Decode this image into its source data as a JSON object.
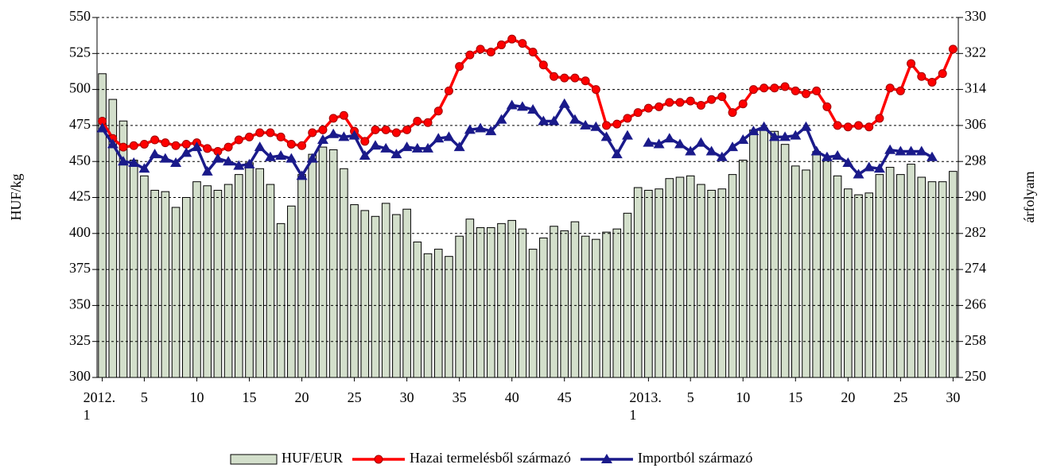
{
  "chart_data": {
    "type": "bar",
    "ylabel": "HUF/kg",
    "y2label": "árfolyam",
    "ylim": [
      300,
      550
    ],
    "yticks": [
      300,
      325,
      350,
      375,
      400,
      425,
      450,
      475,
      500,
      525,
      550
    ],
    "y2lim": [
      250,
      330
    ],
    "y2ticks": [
      250,
      258,
      266,
      274,
      282,
      290,
      298,
      306,
      314,
      322,
      330
    ],
    "grid": true,
    "legend": "bottom",
    "categories": [
      "2012. 1",
      null,
      null,
      null,
      "5",
      null,
      null,
      null,
      null,
      "10",
      null,
      null,
      null,
      null,
      "15",
      null,
      null,
      null,
      null,
      "20",
      null,
      null,
      null,
      null,
      "25",
      null,
      null,
      null,
      null,
      "30",
      null,
      null,
      null,
      null,
      "35",
      null,
      null,
      null,
      null,
      "40",
      null,
      null,
      null,
      null,
      "45",
      null,
      null,
      null,
      null,
      null,
      null,
      null,
      "2013. 1",
      null,
      null,
      null,
      "5",
      null,
      null,
      null,
      null,
      "10",
      null,
      null,
      null,
      null,
      "15",
      null,
      null,
      null,
      null,
      "20",
      null,
      null,
      null,
      null,
      "25",
      null,
      null,
      null,
      null,
      "30"
    ],
    "series": [
      {
        "name": "HUF/EUR",
        "type": "bar",
        "axis": "y2",
        "color": "#d3dfcb",
        "values": [
          317.5,
          311.8,
          307.0,
          298.3,
          294.8,
          291.6,
          291.3,
          287.8,
          290.0,
          293.5,
          292.6,
          291.6,
          292.9,
          295.1,
          297.7,
          296.4,
          292.9,
          284.2,
          288.1,
          295.1,
          299.6,
          301.2,
          300.6,
          296.4,
          288.4,
          287.1,
          285.8,
          288.7,
          286.2,
          287.4,
          280.1,
          277.5,
          278.5,
          276.9,
          281.4,
          285.2,
          283.3,
          283.3,
          284.2,
          284.9,
          283.0,
          278.5,
          281.0,
          283.6,
          282.6,
          284.6,
          281.4,
          280.7,
          282.3,
          283.0,
          286.5,
          292.2,
          291.6,
          291.9,
          294.2,
          294.5,
          294.8,
          292.9,
          291.6,
          291.9,
          295.1,
          298.3,
          305.0,
          305.4,
          304.7,
          301.8,
          297.0,
          296.1,
          300.2,
          298.6,
          294.8,
          291.9,
          290.6,
          291.0,
          295.1,
          296.7,
          295.1,
          297.4,
          294.5,
          293.5,
          293.5,
          295.8
        ]
      },
      {
        "name": "Hazai termelésből származó",
        "type": "line",
        "marker": "circle",
        "color": "#ff0000",
        "values": [
          478,
          466,
          460,
          461,
          462,
          465,
          463,
          461,
          462,
          463,
          459,
          457,
          460,
          465,
          467,
          470,
          470,
          467,
          462,
          461,
          470,
          472,
          480,
          482,
          471,
          464,
          472,
          472,
          470,
          472,
          478,
          477,
          485,
          499,
          516,
          524,
          528,
          526,
          531,
          535,
          532,
          526,
          517,
          509,
          508,
          508,
          506,
          500,
          475,
          476,
          480,
          484,
          487,
          488,
          491,
          491,
          492,
          489,
          493,
          495,
          484,
          490,
          500,
          501,
          501,
          502,
          499,
          497,
          499,
          488,
          475,
          474,
          475,
          474,
          480,
          501,
          499,
          518,
          509,
          505,
          511,
          528
        ]
      },
      {
        "name": "Importból származó",
        "type": "line",
        "marker": "triangle",
        "color": "#1a1a8a",
        "values": [
          473,
          462,
          450,
          449,
          445,
          455,
          452,
          449,
          456,
          460,
          443,
          452,
          450,
          447,
          448,
          460,
          453,
          454,
          452,
          440,
          452,
          465,
          469,
          467,
          468,
          454,
          461,
          459,
          455,
          460,
          459,
          459,
          466,
          467,
          460,
          472,
          473,
          471,
          479,
          489,
          488,
          486,
          478,
          478,
          490,
          479,
          475,
          474,
          467,
          455,
          468,
          null,
          463,
          462,
          466,
          462,
          457,
          463,
          457,
          453,
          460,
          465,
          471,
          474,
          467,
          467,
          468,
          474,
          457,
          453,
          454,
          449,
          441,
          446,
          445,
          458,
          457,
          457,
          457,
          453,
          null,
          null
        ]
      }
    ]
  }
}
